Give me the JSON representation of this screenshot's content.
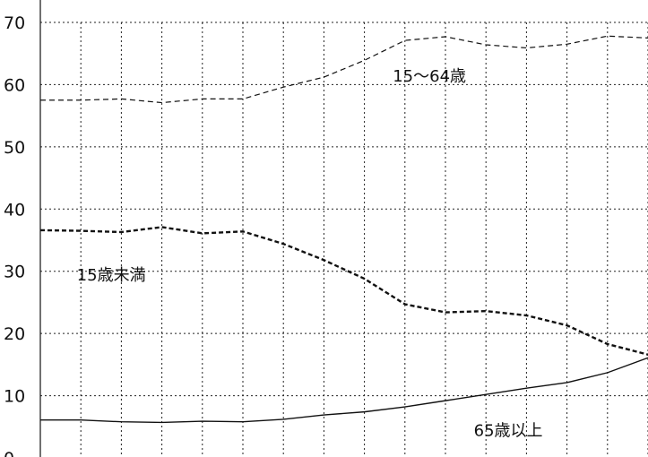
{
  "chart_data": {
    "type": "line",
    "title": "",
    "xlabel": "",
    "ylabel": "",
    "ylim": [
      0,
      70
    ],
    "yticks": [
      0,
      10,
      20,
      30,
      40,
      50,
      60,
      70
    ],
    "x": [
      0,
      1,
      2,
      3,
      4,
      5,
      6,
      7,
      8,
      9,
      10,
      11,
      12,
      13,
      14,
      15
    ],
    "grid": true,
    "series": [
      {
        "name": "15〜64歳",
        "style": "dashed-thin",
        "values": [
          57.5,
          57.5,
          57.7,
          57.1,
          57.7,
          57.7,
          59.6,
          61.2,
          63.9,
          67.1,
          67.7,
          66.4,
          65.9,
          66.5,
          67.8,
          67.5
        ]
      },
      {
        "name": "15歳未満",
        "style": "dashed-bold",
        "values": [
          36.6,
          36.5,
          36.3,
          37.1,
          36.1,
          36.4,
          34.4,
          31.8,
          28.8,
          24.7,
          23.4,
          23.6,
          22.9,
          21.3,
          18.3,
          16.6
        ]
      },
      {
        "name": "65歳以上",
        "style": "solid",
        "values": [
          6.1,
          6.1,
          5.8,
          5.7,
          5.9,
          5.8,
          6.2,
          6.9,
          7.4,
          8.2,
          9.2,
          10.2,
          11.2,
          12.1,
          13.7,
          16.1
        ]
      }
    ],
    "annotations": [
      {
        "text": "15〜64歳",
        "x": 8.7,
        "y": 60.5
      },
      {
        "text": "15歳未満",
        "x": 0.9,
        "y": 28.5
      },
      {
        "text": "65歳以上",
        "x": 10.7,
        "y": 3.5
      }
    ]
  }
}
